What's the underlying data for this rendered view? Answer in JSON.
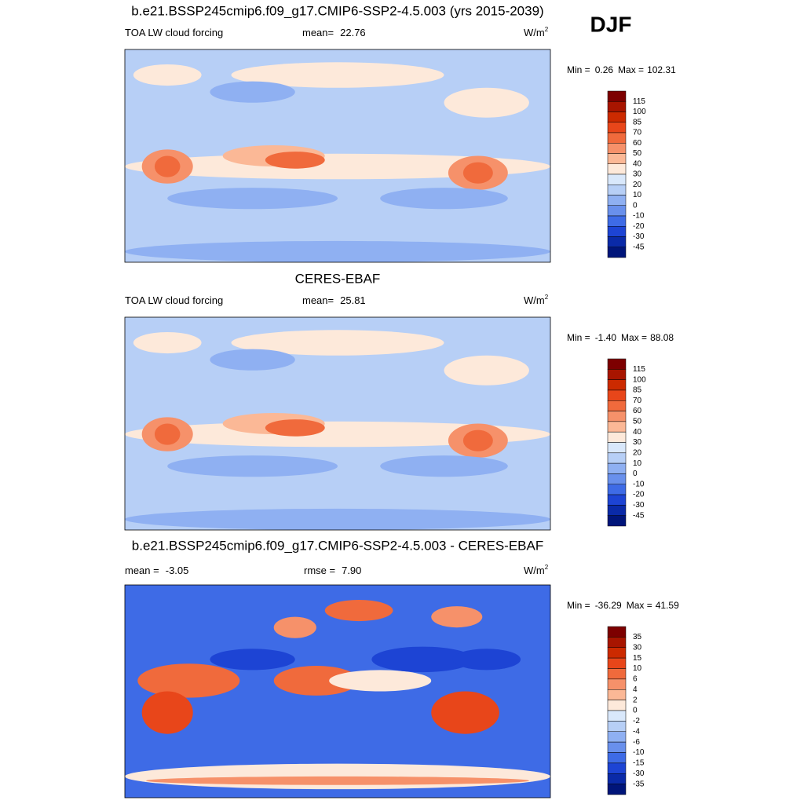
{
  "header": {
    "label": "DJF"
  },
  "panels": [
    {
      "title": "b.e21.BSSP245cmip6.f09_g17.CMIP6-SSP2-4.5.003 (yrs 2015-2039)",
      "left": {
        "label": "TOA LW cloud forcing"
      },
      "center": {
        "label": "mean=",
        "value": "22.76"
      },
      "units": {
        "base": "W/m",
        "sup": "2"
      },
      "range": {
        "min_label": "Min =",
        "min": "0.26",
        "max_label": "Max =",
        "max": "102.31"
      },
      "colorbar": {
        "labels": [
          "115",
          "100",
          "85",
          "70",
          "60",
          "50",
          "40",
          "30",
          "20",
          "10",
          "0",
          "-10",
          "-20",
          "-30",
          "-45"
        ],
        "colors": [
          "#7d0000",
          "#a81500",
          "#cc2a00",
          "#e8461a",
          "#f06a3c",
          "#f6916a",
          "#fbb896",
          "#fde9da",
          "#d9e8fb",
          "#b7cff6",
          "#8fb0f2",
          "#6990ec",
          "#3e6be6",
          "#1d44d4",
          "#0a2aa8",
          "#00157a"
        ]
      }
    },
    {
      "title": "CERES-EBAF",
      "left": {
        "label": "TOA LW cloud forcing"
      },
      "center": {
        "label": "mean=",
        "value": "25.81"
      },
      "units": {
        "base": "W/m",
        "sup": "2"
      },
      "range": {
        "min_label": "Min =",
        "min": "-1.40",
        "max_label": "Max =",
        "max": "88.08"
      },
      "colorbar": {
        "labels": [
          "115",
          "100",
          "85",
          "70",
          "60",
          "50",
          "40",
          "30",
          "20",
          "10",
          "0",
          "-10",
          "-20",
          "-30",
          "-45"
        ],
        "colors": [
          "#7d0000",
          "#a81500",
          "#cc2a00",
          "#e8461a",
          "#f06a3c",
          "#f6916a",
          "#fbb896",
          "#fde9da",
          "#d9e8fb",
          "#b7cff6",
          "#8fb0f2",
          "#6990ec",
          "#3e6be6",
          "#1d44d4",
          "#0a2aa8",
          "#00157a"
        ]
      }
    },
    {
      "title": "b.e21.BSSP245cmip6.f09_g17.CMIP6-SSP2-4.5.003 - CERES-EBAF",
      "left": {
        "label": "mean =",
        "value": "-3.05"
      },
      "center": {
        "label": "rmse =",
        "value": "7.90"
      },
      "units": {
        "base": "W/m",
        "sup": "2"
      },
      "range": {
        "min_label": "Min =",
        "min": "-36.29",
        "max_label": "Max =",
        "max": "41.59"
      },
      "colorbar": {
        "labels": [
          "35",
          "30",
          "15",
          "10",
          "6",
          "4",
          "2",
          "0",
          "-2",
          "-4",
          "-6",
          "-10",
          "-15",
          "-30",
          "-35"
        ],
        "colors": [
          "#7d0000",
          "#a81500",
          "#cc2a00",
          "#e8461a",
          "#f06a3c",
          "#f6916a",
          "#fbb896",
          "#fde9da",
          "#d9e8fb",
          "#b7cff6",
          "#8fb0f2",
          "#6990ec",
          "#3e6be6",
          "#1d44d4",
          "#0a2aa8",
          "#00157a"
        ]
      }
    }
  ]
}
